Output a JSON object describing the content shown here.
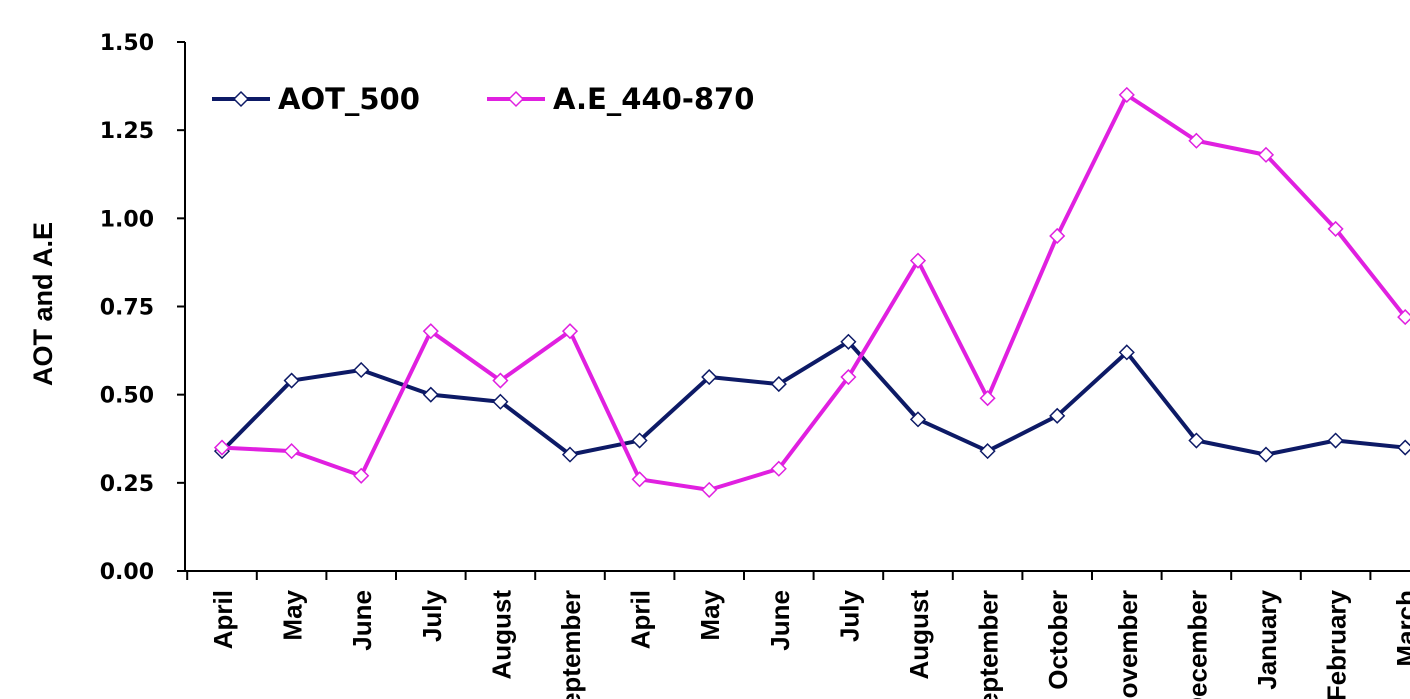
{
  "chart_data": {
    "type": "line",
    "title": "",
    "xlabel": "",
    "ylabel": "AOT and A.E",
    "ylim": [
      0,
      1.5
    ],
    "yticks": [
      "0.00",
      "0.25",
      "0.50",
      "0.75",
      "1.00",
      "1.25",
      "1.50"
    ],
    "grid": false,
    "legend_position": "top-left",
    "categories": [
      "April",
      "May",
      "June",
      "July",
      "August",
      "September",
      "April",
      "May",
      "June",
      "July",
      "August",
      "September",
      "October",
      "November",
      "December",
      "January",
      "February",
      "March"
    ],
    "series": [
      {
        "name": "AOT_500",
        "color": "#0d1a66",
        "marker": "diamond-open",
        "values": [
          0.34,
          0.54,
          0.57,
          0.5,
          0.48,
          0.33,
          0.37,
          0.55,
          0.53,
          0.65,
          0.43,
          0.34,
          0.44,
          0.62,
          0.37,
          0.33,
          0.37,
          0.35
        ]
      },
      {
        "name": "A.E_440-870",
        "color": "#e020e0",
        "marker": "diamond-open",
        "values": [
          0.35,
          0.34,
          0.27,
          0.68,
          0.54,
          0.68,
          0.26,
          0.23,
          0.29,
          0.55,
          0.88,
          0.49,
          0.95,
          1.35,
          1.22,
          1.18,
          0.97,
          0.72
        ]
      }
    ]
  }
}
